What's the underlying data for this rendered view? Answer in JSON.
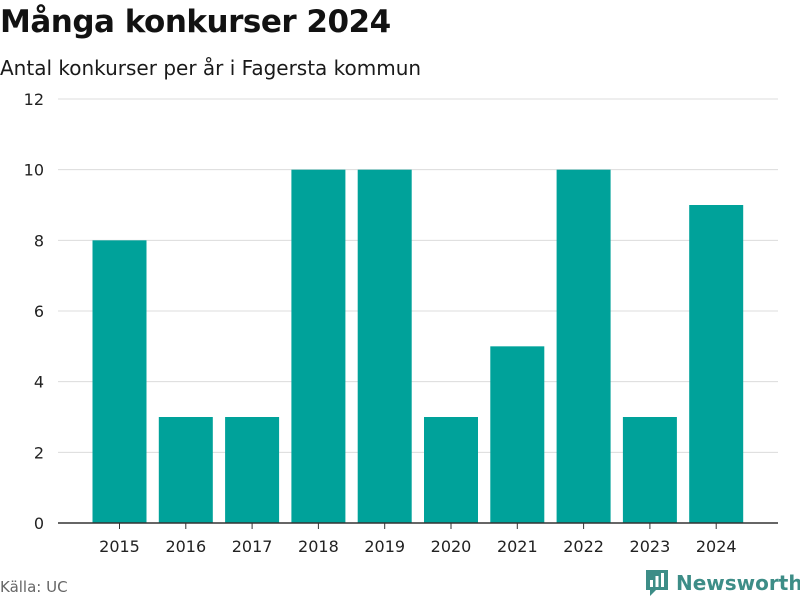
{
  "title": "Många konkurser 2024",
  "subtitle": "Antal konkurser per år i Fagersta kommun",
  "source": "Källa: UC",
  "brand": "Newsworthy",
  "brand_icon": "newsworthy-logo-icon",
  "colors": {
    "bar": "#00a29a",
    "grid": "#dcdcdc",
    "axis": "#333333",
    "brand": "#3d8d87"
  },
  "chart_data": {
    "type": "bar",
    "categories": [
      "2015",
      "2016",
      "2017",
      "2018",
      "2019",
      "2020",
      "2021",
      "2022",
      "2023",
      "2024"
    ],
    "values": [
      8,
      3,
      3,
      10,
      10,
      3,
      5,
      10,
      3,
      9
    ],
    "title": "Många konkurser 2024",
    "subtitle": "Antal konkurser per år i Fagersta kommun",
    "xlabel": "",
    "ylabel": "",
    "ylim": [
      0,
      12
    ],
    "yticks": [
      0,
      2,
      4,
      6,
      8,
      10,
      12
    ],
    "grid": true,
    "legend": "none"
  }
}
